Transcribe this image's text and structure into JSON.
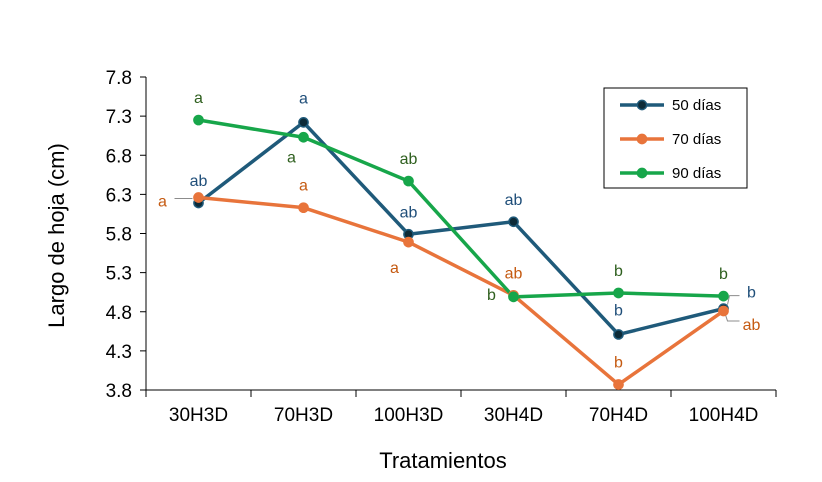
{
  "chart_data": {
    "type": "line",
    "xlabel": "Tratamientos",
    "ylabel": "Largo de hoja (cm)",
    "categories": [
      "30H3D",
      "70H3D",
      "100H3D",
      "30H4D",
      "70H4D",
      "100H4D"
    ],
    "ylim": [
      3.8,
      7.8
    ],
    "yticks": [
      "3.8",
      "4.3",
      "4.8",
      "5.3",
      "5.8",
      "6.3",
      "6.8",
      "7.3",
      "7.8"
    ],
    "grid": false,
    "legend_position": "top-right",
    "series": [
      {
        "name": "50 días",
        "color": "#1f5a7a",
        "marker_fill": "#0d2b38",
        "values": [
          6.19,
          7.22,
          5.79,
          5.95,
          4.51,
          4.84
        ],
        "letters": [
          "ab",
          "a",
          "ab",
          "ab",
          "b",
          "b"
        ]
      },
      {
        "name": "70 días",
        "color": "#e8743b",
        "marker_fill": "#e8743b",
        "values": [
          6.26,
          6.13,
          5.69,
          5.01,
          3.87,
          4.81
        ],
        "letters": [
          "a",
          "a",
          "a",
          "ab",
          "b",
          "ab"
        ]
      },
      {
        "name": "90 días",
        "color": "#17a64a",
        "marker_fill": "#17a64a",
        "values": [
          7.25,
          7.03,
          6.47,
          4.99,
          5.04,
          5.0
        ],
        "letters": [
          "a",
          "a",
          "ab",
          "b",
          "b",
          "b"
        ]
      }
    ],
    "letter_colors": [
      "#1f4e79",
      "#c55a11",
      "#2e5f1e"
    ]
  }
}
